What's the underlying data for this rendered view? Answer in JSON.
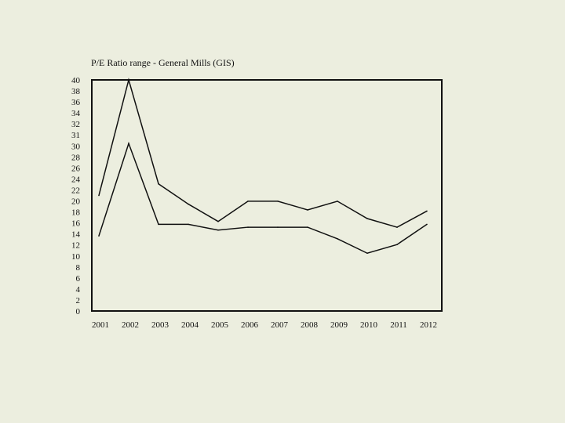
{
  "chart_data": {
    "type": "line",
    "title": "P/E Ratio range - General Mills (GIS)",
    "xlabel": "",
    "ylabel": "",
    "categories": [
      "2001",
      "2002",
      "2003",
      "2004",
      "2005",
      "2006",
      "2007",
      "2008",
      "2009",
      "2010",
      "2011",
      "2012"
    ],
    "y_tick_labels": [
      "40",
      "38",
      "36",
      "34",
      "32",
      "31",
      "30",
      "28",
      "26",
      "24",
      "22",
      "20",
      "18",
      "16",
      "14",
      "12",
      "10",
      "8",
      "6",
      "4",
      "2",
      "0"
    ],
    "series": [
      {
        "values": [
          20,
          40,
          22,
          18.5,
          15.5,
          19,
          19,
          17.5,
          19,
          16,
          14.5,
          17.3
        ]
      },
      {
        "values": [
          13,
          29,
          15,
          15,
          14,
          14.5,
          14.5,
          14.5,
          12.5,
          10,
          11.5,
          15
        ]
      }
    ],
    "ylim": [
      0,
      40
    ],
    "grid": false,
    "legend": "none",
    "colors": {
      "background": "#ECEEDF",
      "plot_area": "#ECEEDF",
      "line": "#111111",
      "range_fill": "#ECEEDF"
    }
  }
}
